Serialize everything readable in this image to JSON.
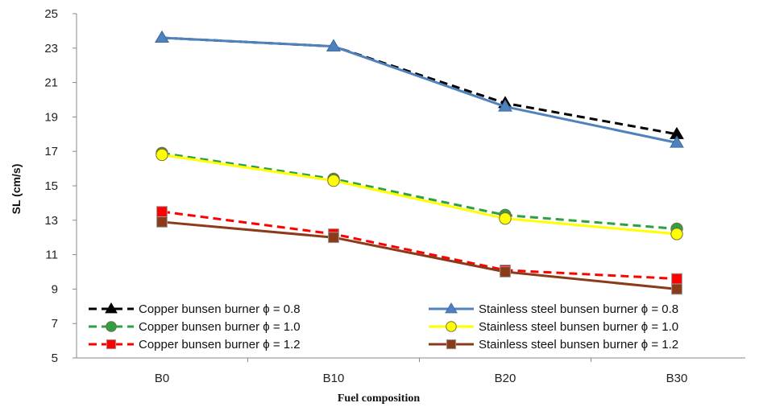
{
  "chart_data": {
    "type": "line",
    "title": "",
    "xlabel": "Fuel composition",
    "ylabel": "SL (cm/s)",
    "ylim": [
      5,
      25
    ],
    "yticks": [
      5,
      7,
      9,
      11,
      13,
      15,
      17,
      19,
      21,
      23,
      25
    ],
    "categories": [
      "B0",
      "B10",
      "B20",
      "B30"
    ],
    "grid": false,
    "legend_position": "bottom, two columns inside plot",
    "series": [
      {
        "name": "Copper bunsen burner ϕ = 0.8",
        "values": [
          23.6,
          23.1,
          19.8,
          18.0
        ],
        "color": "#000000",
        "dash": "dashed",
        "marker": "triangle",
        "marker_color": "#000000"
      },
      {
        "name": "Stainless steel bunsen burner ϕ = 0.8",
        "values": [
          23.6,
          23.1,
          19.6,
          17.5
        ],
        "color": "#4F81BD",
        "dash": "solid",
        "marker": "triangle",
        "marker_color": "#4F81BD"
      },
      {
        "name": "Copper bunsen burner ϕ  = 1.0",
        "values": [
          16.9,
          15.4,
          13.3,
          12.5
        ],
        "color": "#2EA043",
        "dash": "dashed",
        "marker": "circle",
        "marker_color": "#2EA043"
      },
      {
        "name": "Stainless steel bunsen burner ϕ  = 1.0",
        "values": [
          16.8,
          15.3,
          13.1,
          12.2
        ],
        "color": "#FFFF00",
        "dash": "solid",
        "marker": "circle",
        "marker_color": "#FFFF00"
      },
      {
        "name": "Copper bunsen burner ϕ  = 1.2",
        "values": [
          13.5,
          12.2,
          10.1,
          9.6
        ],
        "color": "#FF0000",
        "dash": "dashed",
        "marker": "square",
        "marker_color": "#FF0000"
      },
      {
        "name": "Stainless steel bunsen burner ϕ  = 1.2",
        "values": [
          12.9,
          12.0,
          10.0,
          9.0
        ],
        "color": "#8B3A1A",
        "dash": "solid",
        "marker": "square",
        "marker_color": "#8B3A1A"
      }
    ]
  }
}
